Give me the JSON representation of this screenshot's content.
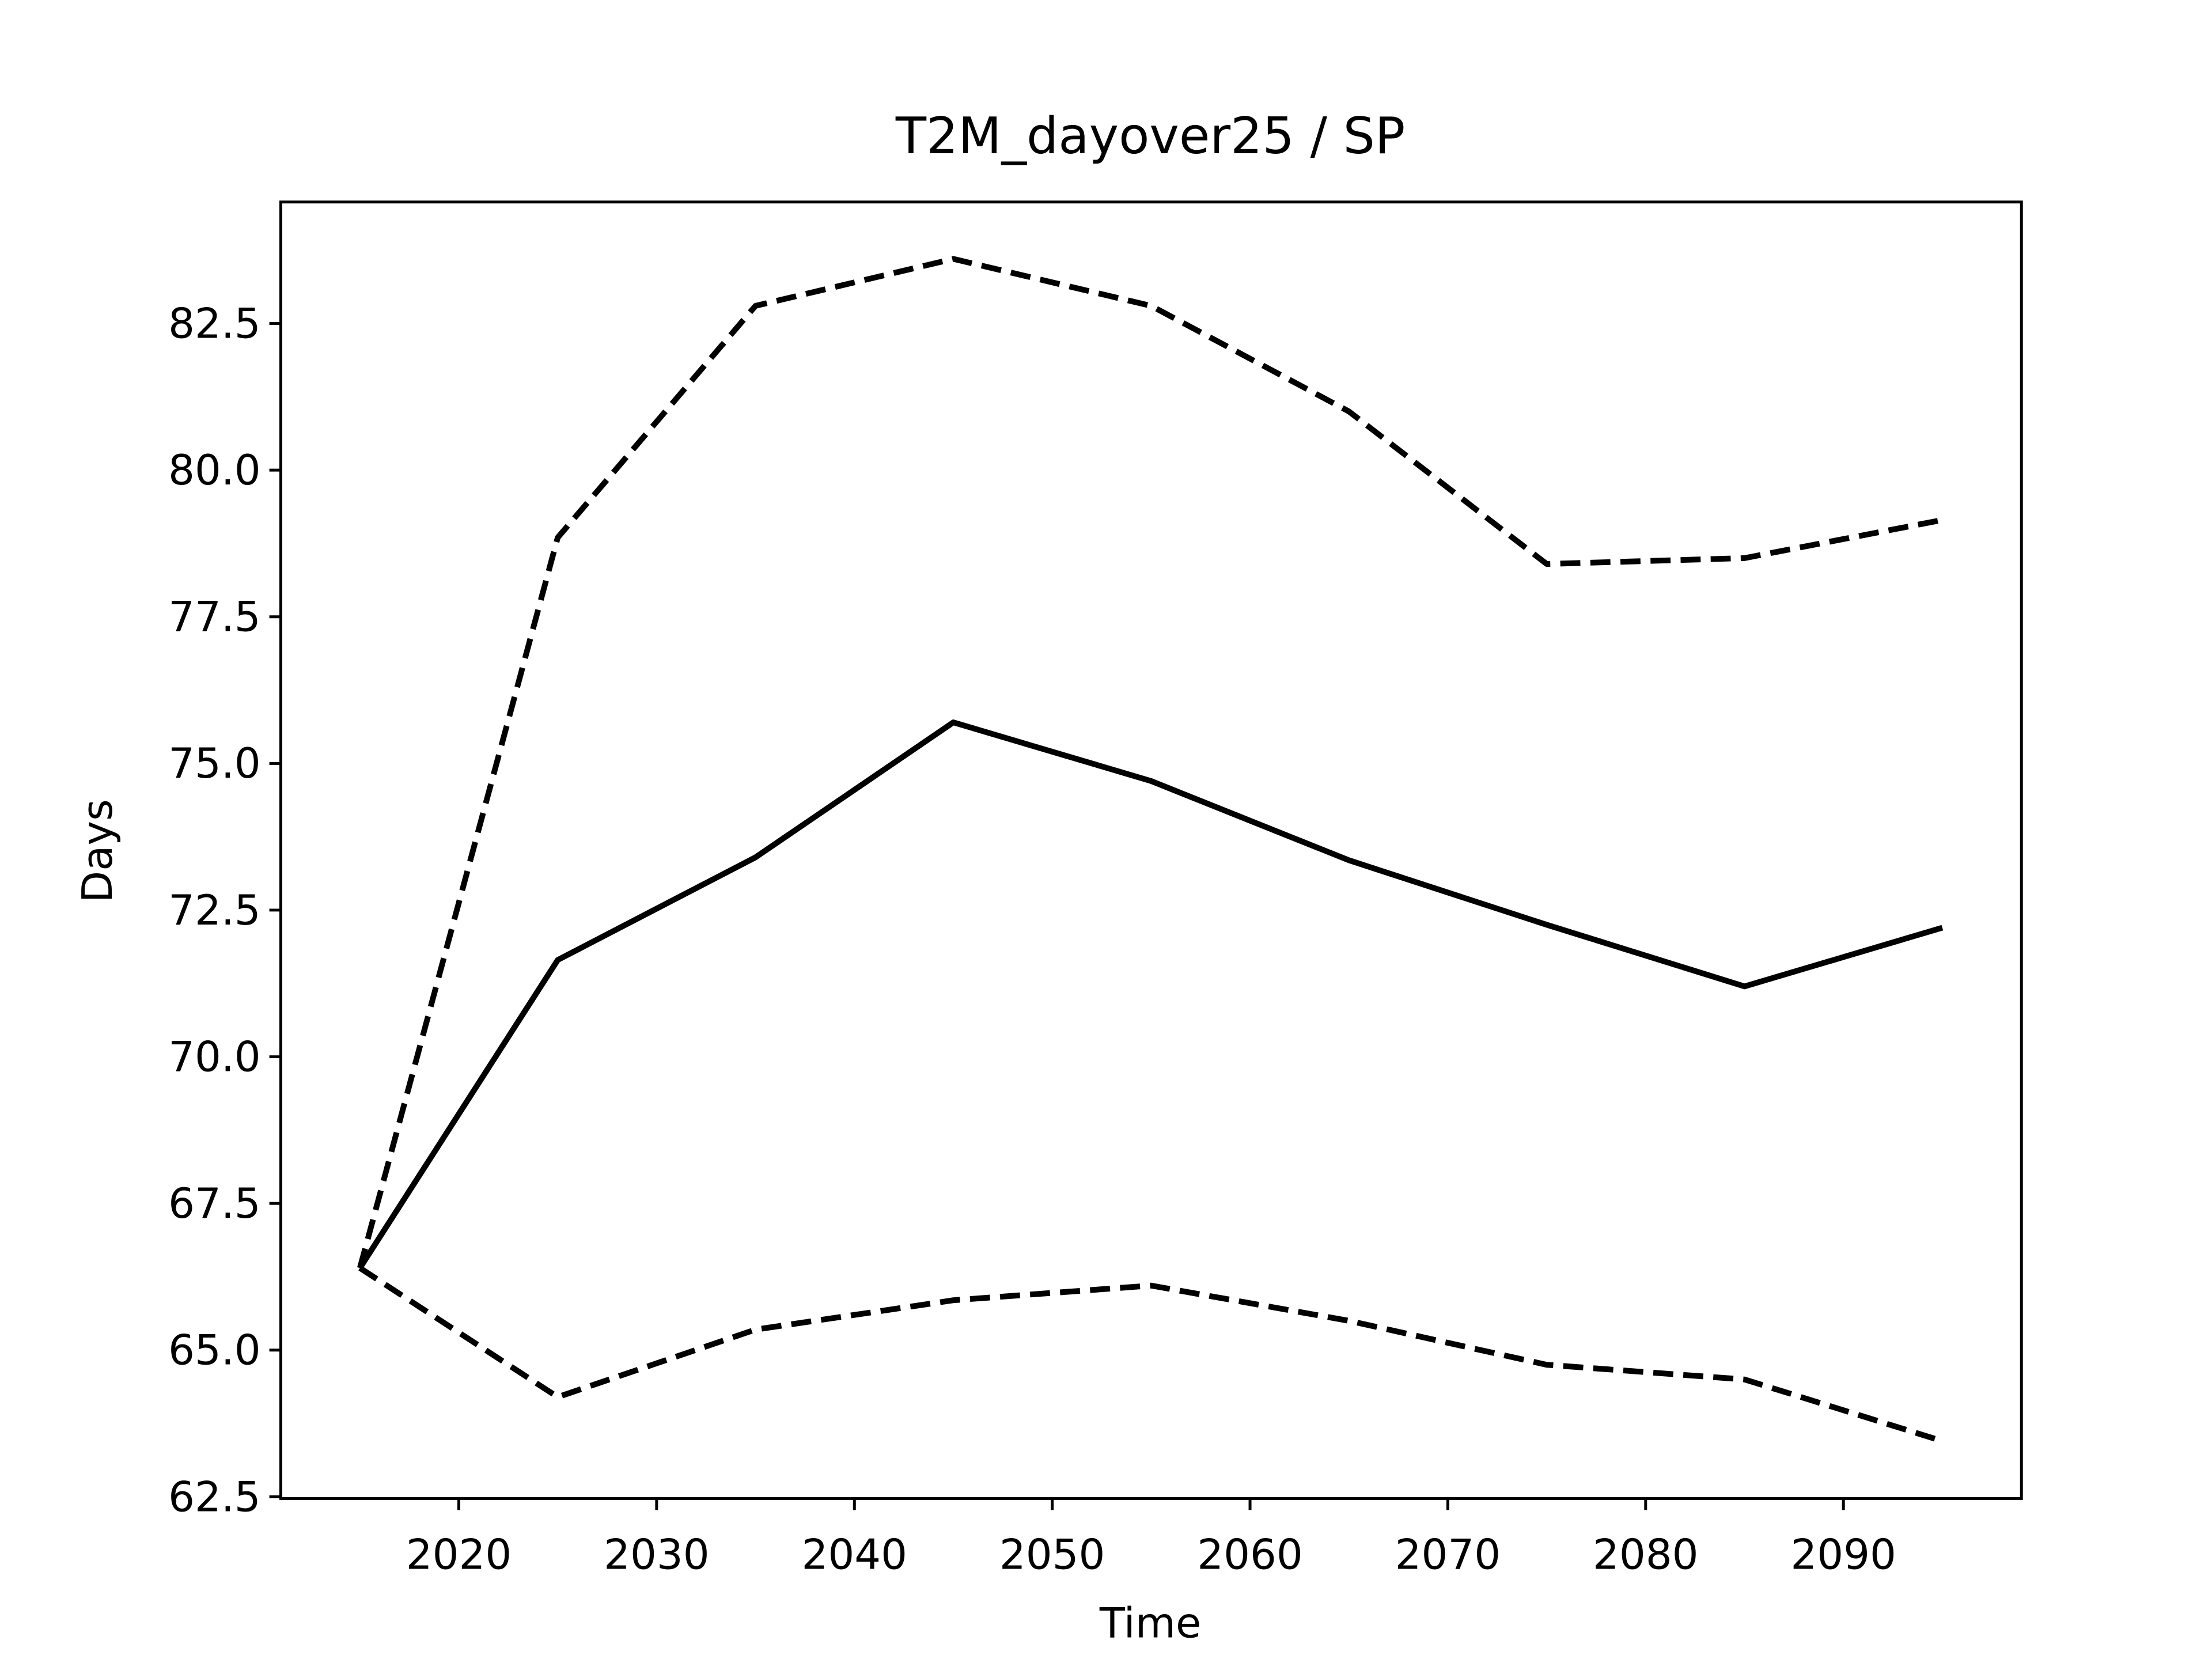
{
  "chart_data": {
    "type": "line",
    "title": "T2M_dayover25 / SP",
    "x_label": "Time",
    "y_label": "Days",
    "x": [
      2015,
      2025,
      2035,
      2045,
      2055,
      2065,
      2075,
      2085,
      2095
    ],
    "series": [
      {
        "color": "#000000",
        "linestyle": "solid",
        "values": [
          66.4,
          71.65,
          73.4,
          75.7,
          74.7,
          73.35,
          72.25,
          71.2,
          72.2
        ]
      },
      {
        "color": "#000000",
        "linestyle": "dashed",
        "values": [
          66.4,
          78.85,
          82.8,
          83.6,
          82.8,
          81.0,
          78.4,
          78.5,
          79.15
        ]
      },
      {
        "color": "#000000",
        "linestyle": "dashed",
        "values": [
          66.4,
          64.2,
          65.35,
          65.85,
          66.1,
          65.5,
          64.75,
          64.5,
          63.45
        ]
      }
    ],
    "xlim": [
      2011,
      2099
    ],
    "xticks": [
      2020,
      2030,
      2040,
      2050,
      2060,
      2070,
      2080,
      2090
    ],
    "ylim": [
      62.47,
      84.57
    ],
    "yticks": [
      {
        "value": 62.5,
        "label": "62.5"
      },
      {
        "value": 65,
        "label": "65.0"
      },
      {
        "value": 67.5,
        "label": "67.5"
      },
      {
        "value": 70,
        "label": "70.0"
      },
      {
        "value": 72.5,
        "label": "72.5"
      },
      {
        "value": 75,
        "label": "75.0"
      },
      {
        "value": 77.5,
        "label": "77.5"
      },
      {
        "value": 80,
        "label": "80.0"
      },
      {
        "value": 82.5,
        "label": "82.5"
      }
    ],
    "grid": false
  }
}
